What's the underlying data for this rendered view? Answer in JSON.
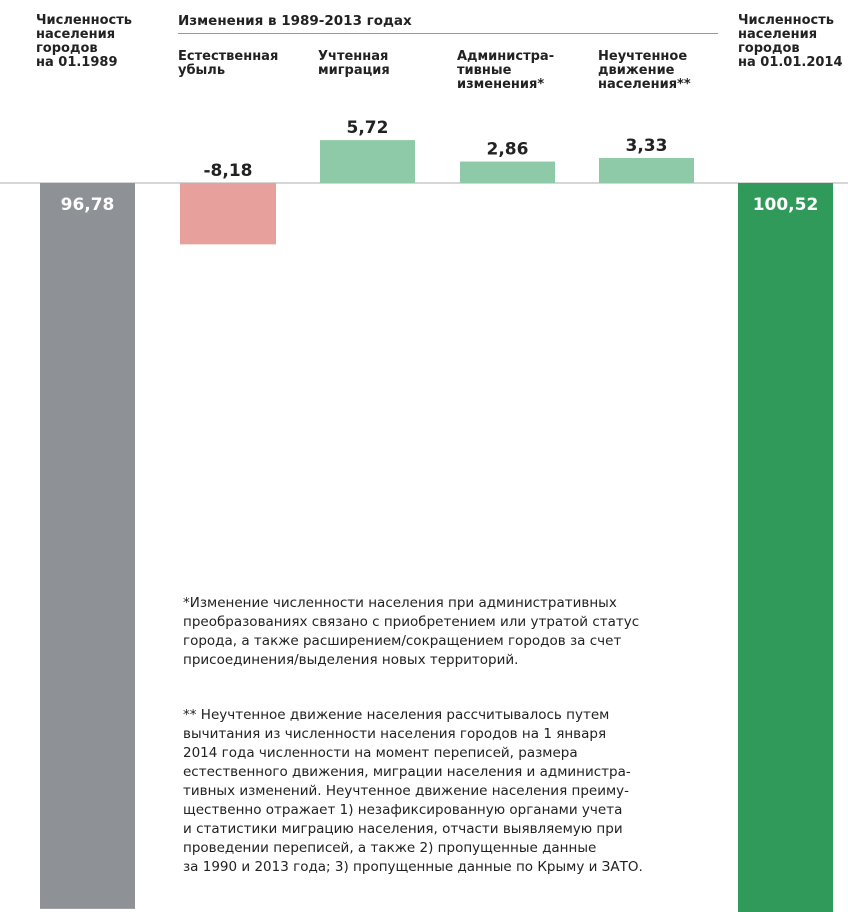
{
  "chart_data": {
    "type": "bar",
    "group_label": "Изменения в 1989-2013 годах",
    "categories": [
      "Численность\nнаселения\nгородов\nна 01.1989",
      "Естественная\nубыль",
      "Учтенная\nмиграция",
      "Администра-\nтивные\nизменения*",
      "Неучтенное\nдвижение\nнаселения**",
      "Численность\nнаселения\nгородов\nна 01.01.2014"
    ],
    "values": [
      96.78,
      -8.18,
      5.72,
      2.86,
      3.33,
      100.52
    ],
    "value_labels": [
      "96,78",
      "-8,18",
      "5,72",
      "2,86",
      "3,33",
      "100,52"
    ],
    "colors": [
      "#8e9296",
      "#e8a09d",
      "#8fcaa8",
      "#8fcaa8",
      "#8fcaa8",
      "#2f9a5a"
    ],
    "notes": [
      "*Изменение численности населения при административных\nпреобразованиях связано с приобретением или утратой статус\nгорода, а также расширением/сокращением городов за счет\nприсоединения/выделения новых территорий.",
      "** Неучтенное движение населения рассчитывалось путем\nвычитания из численности населения городов на 1 января\n2014 года численности на момент переписей, размера\nестественного движения, миграции населения и администра-\nтивных изменений. Неучтенное движение населения преиму-\nщественно отражает 1) незафиксированную органами учета\nи статистики миграцию населения, отчасти выявляемую при\nпроведении переписей, а также 2) пропущенные данные\nза 1990 и 2013 года; 3) пропущенные данные по Крыму и ЗАТО."
    ]
  }
}
